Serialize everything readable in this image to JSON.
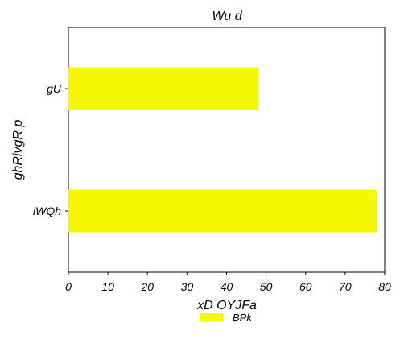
{
  "chart_data": {
    "type": "bar",
    "orientation": "horizontal",
    "title": "Wu d",
    "xlabel": "xD OYJFa",
    "ylabel": "ghRivgR p",
    "categories": [
      "gU",
      "lWQh"
    ],
    "series": [
      {
        "name": "BPk",
        "values": [
          48,
          78
        ],
        "color": "#f5f800"
      }
    ],
    "xlim": [
      0,
      80
    ],
    "xticks": [
      0,
      10,
      20,
      30,
      40,
      50,
      60,
      70,
      80
    ],
    "grid": false,
    "legend": "bottom-center"
  }
}
